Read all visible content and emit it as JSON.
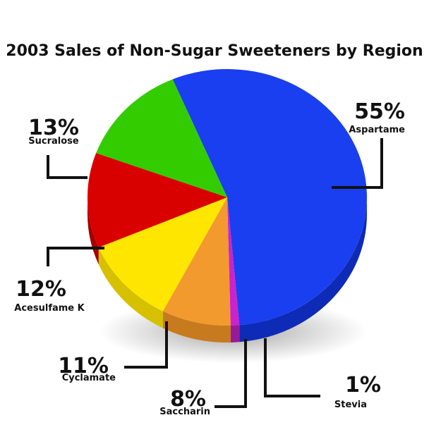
{
  "chart_data": {
    "type": "pie",
    "title": "2003 Sales of Non-Sugar Sweeteners by Region",
    "slices": [
      {
        "label": "Aspartame",
        "value": 55,
        "value_label": "55%",
        "color": "#1a3ff0",
        "side_color": "#0e2bb8"
      },
      {
        "label": "Stevia",
        "value": 1,
        "value_label": "1%",
        "color": "#cc22cc",
        "side_color": "#991a99"
      },
      {
        "label": "Saccharin",
        "value": 8,
        "value_label": "8%",
        "color": "#f29a2e",
        "side_color": "#c77a1e"
      },
      {
        "label": "Cyclamate",
        "value": 11,
        "value_label": "11%",
        "color": "#ffe600",
        "side_color": "#d6c000"
      },
      {
        "label": "Acesulfame K",
        "value": 12,
        "value_label": "12%",
        "color": "#d90000",
        "side_color": "#a30000"
      },
      {
        "label": "Sucralose",
        "value": 13,
        "value_label": "13%",
        "color": "#33cc00",
        "side_color": "#239000"
      }
    ]
  }
}
